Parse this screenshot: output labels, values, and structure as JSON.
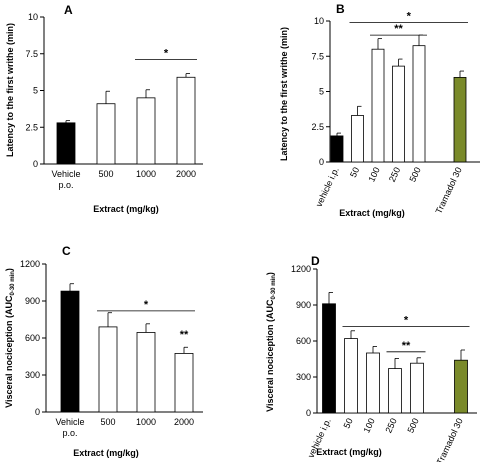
{
  "chart_data": [
    {
      "panel": "A",
      "type": "bar",
      "ylabel": "Latency to the first writhe (min)",
      "xlabel": "Extract (mg/kg)",
      "ylim": [
        0,
        10
      ],
      "yticks": [
        "0",
        "2.5",
        "5",
        "7.5",
        "10"
      ],
      "categories": [
        "Vehicle p.o.",
        "500",
        "1000",
        "2000"
      ],
      "values": [
        2.8,
        4.1,
        4.5,
        5.9
      ],
      "errors": [
        0.15,
        0.85,
        0.55,
        0.25
      ],
      "fills": [
        "#000000",
        "#ffffff",
        "#ffffff",
        "#ffffff"
      ],
      "annotations": [
        {
          "label": "*",
          "from": 2,
          "to": 3,
          "y": 7.1
        }
      ]
    },
    {
      "panel": "B",
      "type": "bar",
      "ylabel": "Latency to the first writhe (min)",
      "xlabel": "Extract (mg/kg)",
      "ylim": [
        0,
        10
      ],
      "yticks": [
        "0",
        "2.5",
        "5",
        "7.5",
        "10"
      ],
      "categories": [
        "vehicle i.p.",
        "50",
        "100",
        "250",
        "500",
        "",
        "Tramadol 30"
      ],
      "values": [
        1.85,
        3.3,
        8.0,
        6.8,
        8.25,
        null,
        6.0
      ],
      "errors": [
        0.2,
        0.65,
        0.75,
        0.5,
        0.75,
        null,
        0.45
      ],
      "fills": [
        "#000000",
        "#ffffff",
        "#ffffff",
        "#ffffff",
        "#ffffff",
        "none",
        "#7a8a2a"
      ],
      "annotations": [
        {
          "label": "*",
          "from": 1,
          "to": 6,
          "y": 9.9
        },
        {
          "label": "**",
          "from": 2,
          "to": 4,
          "y": 9.0
        }
      ]
    },
    {
      "panel": "C",
      "type": "bar",
      "ylabel": "Visceral nociception (AUC",
      "ylabel_sub": "0-30 min",
      "ylabel_end": ")",
      "xlabel": "Extract (mg/kg)",
      "ylim": [
        0,
        1200
      ],
      "yticks": [
        "0",
        "300",
        "600",
        "900",
        "1200"
      ],
      "categories": [
        "Vehicle p.o.",
        "500",
        "1000",
        "2000"
      ],
      "values": [
        980,
        690,
        645,
        475
      ],
      "errors": [
        60,
        115,
        70,
        50
      ],
      "fills": [
        "#000000",
        "#ffffff",
        "#ffffff",
        "#ffffff"
      ],
      "annotations": [
        {
          "label": "*",
          "from": 1,
          "to": 3,
          "y": 820
        },
        {
          "label": "**",
          "bar": 3,
          "y": 600
        }
      ]
    },
    {
      "panel": "D",
      "type": "bar",
      "ylabel": "Visceral nociception (AUC",
      "ylabel_sub": "0-30 min",
      "ylabel_end": ")",
      "xlabel": "Extract (mg/kg)",
      "ylim": [
        0,
        1200
      ],
      "yticks": [
        "0",
        "300",
        "600",
        "900",
        "1200"
      ],
      "categories": [
        "vehicle i.p.",
        "50",
        "100",
        "250",
        "500",
        "",
        "Tramadol 30"
      ],
      "values": [
        910,
        620,
        500,
        370,
        415,
        null,
        440
      ],
      "errors": [
        95,
        65,
        55,
        85,
        45,
        null,
        85
      ],
      "fills": [
        "#000000",
        "#ffffff",
        "#ffffff",
        "#ffffff",
        "#ffffff",
        "none",
        "#7a8a2a"
      ],
      "annotations": [
        {
          "label": "*",
          "from": 1,
          "to": 6,
          "y": 720
        },
        {
          "label": "**",
          "from": 3,
          "to": 4,
          "y": 510
        }
      ]
    }
  ]
}
